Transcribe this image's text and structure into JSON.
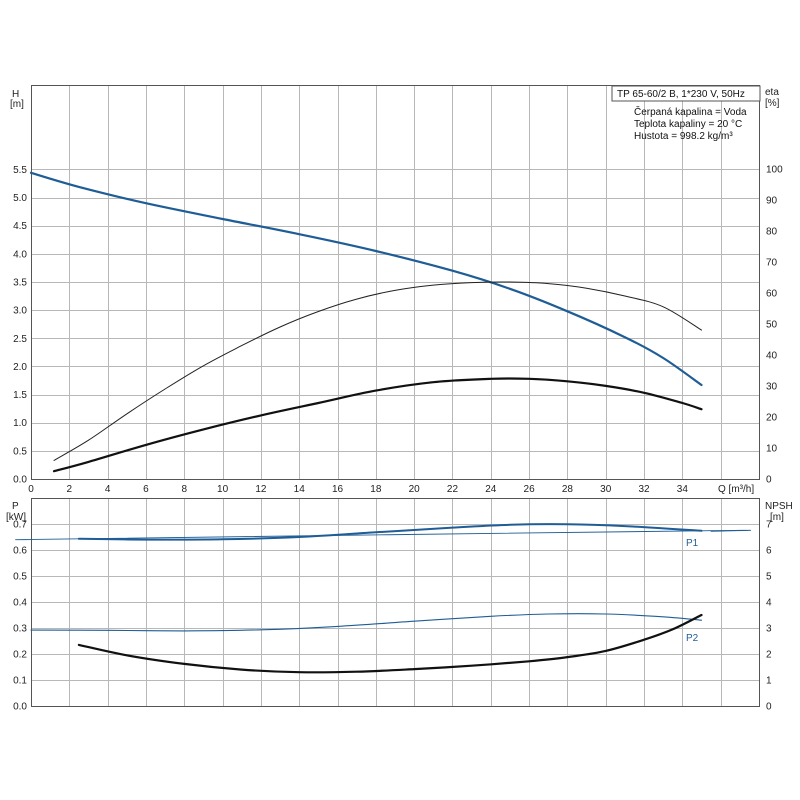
{
  "info_box": {
    "pump": "TP 65-60/2 B, 1*230 V, 50Hz",
    "liquid": "Čerpaná kapalina = Voda",
    "temperature": "Teplota kapaliny = 20 °C",
    "density": "Hustota = 998.2 kg/m³"
  },
  "chart_data": [
    {
      "type": "line",
      "panel": "head-efficiency",
      "x_label": "Q [m³/h]",
      "x_ticks": [
        "0",
        "2",
        "4",
        "6",
        "8",
        "10",
        "12",
        "14",
        "16",
        "18",
        "20",
        "22",
        "24",
        "26",
        "28",
        "30",
        "32",
        "34"
      ],
      "xlim": [
        0,
        38
      ],
      "y_left_label": [
        "H",
        "[m]"
      ],
      "y_left_ticks": [
        "0.0",
        "0.5",
        "1.0",
        "1.5",
        "2.0",
        "2.5",
        "3.0",
        "3.5",
        "4.0",
        "4.5",
        "5.0",
        "5.5"
      ],
      "y_left_lim": [
        0,
        7
      ],
      "y_right_label": [
        "eta",
        "[%]"
      ],
      "y_right_ticks": [
        "0",
        "10",
        "20",
        "30",
        "40",
        "50",
        "60",
        "70",
        "80",
        "90",
        "100"
      ],
      "y_right_lim": [
        0,
        127
      ],
      "grid": true,
      "series": [
        {
          "axis": "left",
          "color": "#1f5d96",
          "width": 2.2,
          "x": [
            0,
            2.5,
            6,
            10,
            14,
            18,
            22,
            25,
            28,
            31,
            33,
            35
          ],
          "y": [
            5.44,
            5.19,
            4.9,
            4.62,
            4.35,
            4.05,
            3.7,
            3.38,
            2.98,
            2.52,
            2.15,
            1.67
          ]
        },
        {
          "axis": "left",
          "color": "#1f5d96",
          "width": 0.9,
          "x": [
            0,
            2.5
          ],
          "y": [
            5.44,
            5.19
          ]
        },
        {
          "axis": "right",
          "color": "#222222",
          "width": 1.0,
          "x": [
            1.2,
            3,
            5,
            7,
            9,
            11,
            13,
            15,
            17,
            19,
            21,
            23,
            25,
            27,
            29,
            31,
            33,
            35
          ],
          "y": [
            6,
            12.5,
            21,
            29,
            36.5,
            43,
            49,
            54,
            58,
            60.8,
            62.5,
            63.3,
            63.5,
            63,
            61.5,
            59,
            55.5,
            48
          ]
        },
        {
          "axis": "right",
          "color": "#111111",
          "width": 2.2,
          "x": [
            1.2,
            3,
            6,
            9,
            12,
            15,
            18,
            21,
            24,
            26,
            28,
            30,
            32,
            34,
            35
          ],
          "y": [
            2.5,
            5.5,
            11,
            16,
            20.5,
            24.5,
            28.5,
            31.2,
            32.3,
            32.3,
            31.5,
            30,
            27.8,
            24.5,
            22.5
          ]
        }
      ]
    },
    {
      "type": "line",
      "panel": "power-npsh",
      "x_ticks": [],
      "xlim": [
        0,
        38
      ],
      "y_left_label": [
        "P",
        "[kW]"
      ],
      "y_left_ticks": [
        "0.0",
        "0.1",
        "0.2",
        "0.3",
        "0.4",
        "0.5",
        "0.6",
        "0.7"
      ],
      "y_left_lim": [
        0,
        0.8
      ],
      "y_right_label": [
        "NPSH",
        "[m]"
      ],
      "y_right_ticks": [
        "0",
        "1",
        "2",
        "3",
        "4",
        "5",
        "6",
        "7"
      ],
      "y_right_lim": [
        0,
        8
      ],
      "grid": true,
      "series": [
        {
          "name": "P1",
          "axis": "left",
          "color": "#1f5d96",
          "width": 2.0,
          "x": [
            2.5,
            6,
            10,
            14,
            18,
            22,
            25,
            28,
            31,
            35
          ],
          "y": [
            0.643,
            0.64,
            0.641,
            0.65,
            0.668,
            0.686,
            0.697,
            0.699,
            0.692,
            0.674
          ]
        },
        {
          "axis": "left",
          "color": "#1f5d96",
          "width": 0.9,
          "x": [
            0,
            2.5,
            35,
            35.5
          ],
          "y": [
            0.64,
            0.643,
            0.674,
            0.672
          ]
        },
        {
          "name": "P2",
          "axis": "left",
          "color": "#1f5d96",
          "width": 1.1,
          "x": [
            0,
            4,
            8,
            12,
            16,
            20,
            24,
            27,
            30,
            33,
            35
          ],
          "y": [
            0.292,
            0.291,
            0.289,
            0.293,
            0.306,
            0.326,
            0.345,
            0.354,
            0.354,
            0.343,
            0.33
          ]
        },
        {
          "axis": "right",
          "color": "#111111",
          "width": 2.2,
          "x": [
            2.5,
            5,
            8,
            11,
            14,
            17,
            20,
            23,
            26,
            28,
            30,
            32,
            33.5,
            35
          ],
          "y": [
            2.35,
            1.95,
            1.62,
            1.4,
            1.3,
            1.32,
            1.42,
            1.55,
            1.72,
            1.88,
            2.12,
            2.55,
            2.95,
            3.5
          ]
        }
      ]
    }
  ],
  "colors": {
    "accent": "#1f5d96",
    "grid": "#b8b8b8",
    "frame": "#555555"
  }
}
